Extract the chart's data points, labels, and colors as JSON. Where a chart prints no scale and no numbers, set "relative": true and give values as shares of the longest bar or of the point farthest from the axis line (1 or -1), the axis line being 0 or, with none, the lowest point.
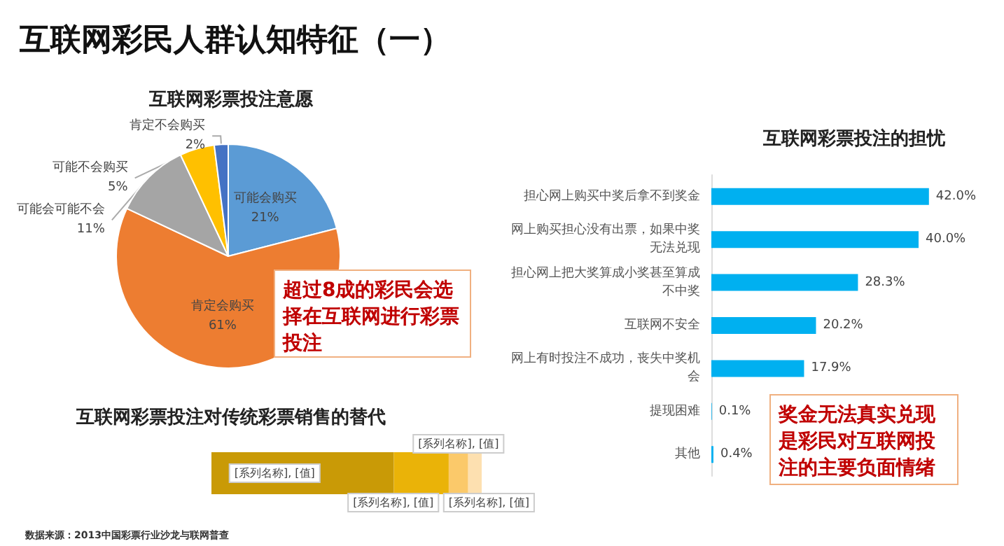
{
  "chart_data": [
    {
      "type": "pie",
      "title": "互联网彩票投注意愿",
      "categories": [
        "可能会购买",
        "肯定会购买",
        "可能会可能不会",
        "可能不会购买",
        "肯定不会购买"
      ],
      "values": [
        21,
        61,
        11,
        5,
        2
      ],
      "colors": [
        "#5b9bd5",
        "#ed7d31",
        "#a5a5a5",
        "#ffc000",
        "#4472c4"
      ],
      "value_labels": [
        "21%",
        "61%",
        "11%",
        "5%",
        "2%"
      ],
      "annotations": [
        "互联网彩民人群认知特征（一）",
        "超过8成的彩民会选择在互联网进行彩票投注"
      ]
    },
    {
      "type": "bar",
      "orientation": "horizontal",
      "title": "互联网彩票投注的担忧",
      "categories": [
        "担心网上购买中奖后拿不到奖金",
        "网上购买担心没有出票，如果中奖无法兑现",
        "担心网上把大奖算成小奖甚至算成不中奖",
        "互联网不安全",
        "网上有时投注不成功，丧失中奖机会",
        "提现困难",
        "其他"
      ],
      "values": [
        42.0,
        40.0,
        28.3,
        20.2,
        17.9,
        0.1,
        0.4
      ],
      "color": "#00b0f0",
      "tick_labels": "y",
      "value_labels": [
        "42.0%",
        "40.0%",
        "28.3%",
        "20.2%",
        "17.9%",
        "0.1%",
        "0.4%"
      ],
      "annotations": [
        "奖金无法真实兑现是彩民对互联网投注的主要负面情绪"
      ]
    },
    {
      "type": "bar",
      "orientation": "horizontal",
      "stacked": true,
      "relative": true,
      "title": "互联网彩票投注对传统彩票销售的替代",
      "categories": [
        null
      ],
      "series": [
        {
          "color": "#c99a06",
          "values": [
            0.675
          ]
        },
        {
          "color": "#eab308",
          "values": [
            0.203
          ]
        },
        {
          "color": "#fbc96a",
          "values": [
            0.072
          ]
        },
        {
          "color": "#fde0b0",
          "values": [
            0.05
          ]
        }
      ],
      "annotations": [
        "数据来源：2013中国彩票行业沙龙与联网普查",
        "[系列名称], [值]",
        "[系列名称], [值]",
        "[系列名称], [值]",
        "[系列名称], [值]"
      ]
    }
  ]
}
